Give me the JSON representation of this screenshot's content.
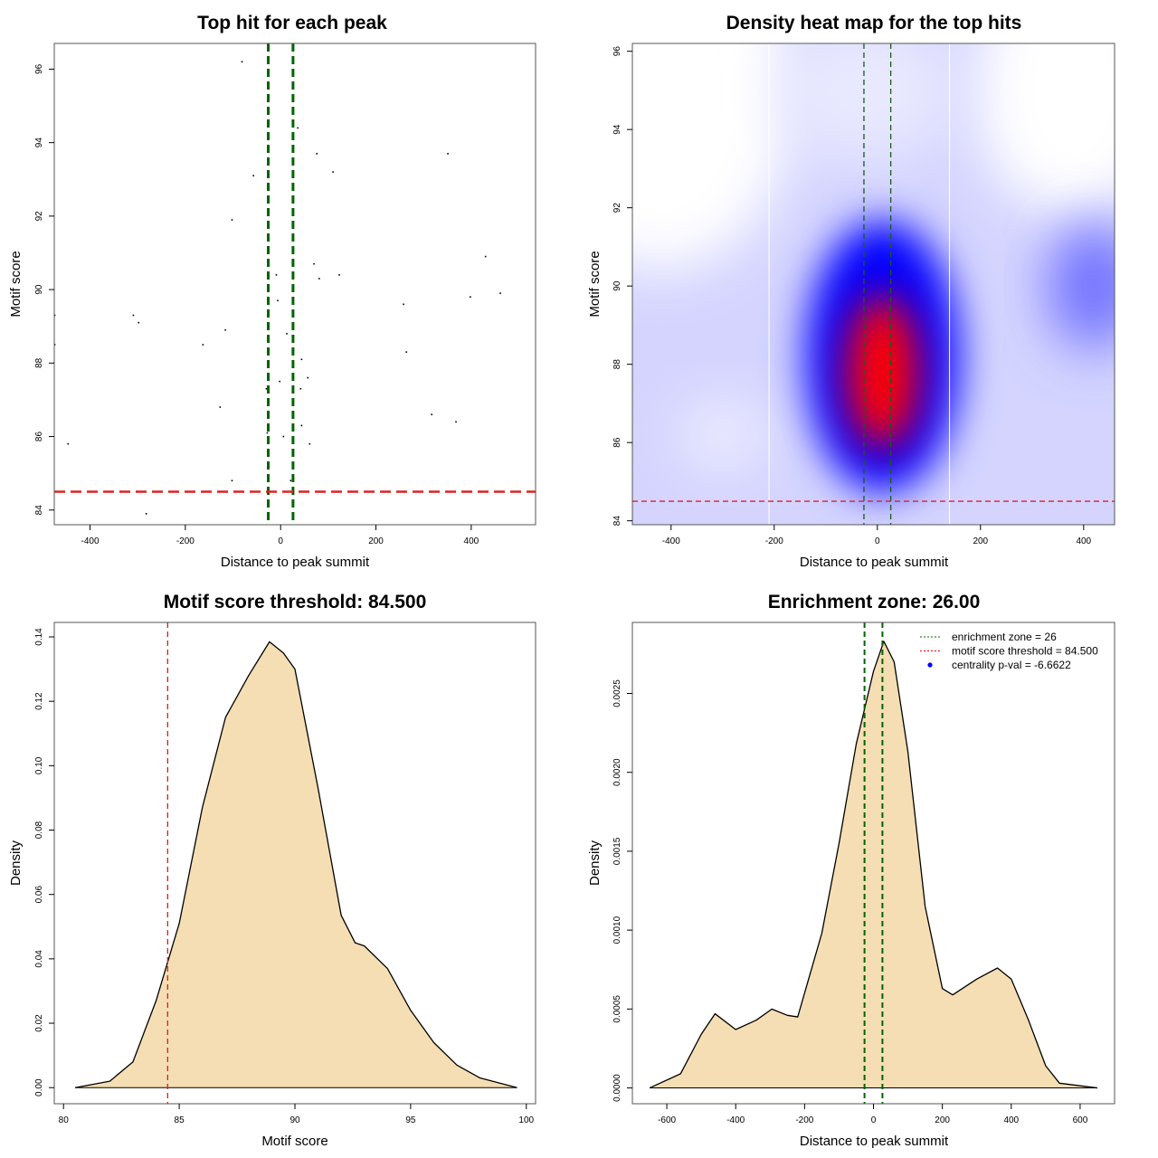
{
  "chart_data": [
    {
      "type": "scatter",
      "title": "Top hit for each peak",
      "xlabel": "Distance to peak summit",
      "ylabel": "Motif score",
      "xlim": [
        -475,
        535
      ],
      "ylim": [
        83.6,
        96.7
      ],
      "xticks": [
        -400,
        -200,
        0,
        200,
        400
      ],
      "yticks": [
        84,
        86,
        88,
        90,
        92,
        94,
        96
      ],
      "vlines": [
        -26,
        26
      ],
      "vline_color": "#006400",
      "hline": 84.5,
      "hline_color": "#dd2222",
      "points": [
        [
          -81,
          96.2
        ],
        [
          36,
          94.4
        ],
        [
          76,
          93.7
        ],
        [
          351,
          93.7
        ],
        [
          110,
          93.2
        ],
        [
          -57,
          93.1
        ],
        [
          -102,
          91.9
        ],
        [
          430,
          90.9
        ],
        [
          70,
          90.7
        ],
        [
          -9,
          90.4
        ],
        [
          123,
          90.4
        ],
        [
          81,
          90.3
        ],
        [
          27,
          90.1
        ],
        [
          461,
          89.9
        ],
        [
          398,
          89.8
        ],
        [
          258,
          89.6
        ],
        [
          -474,
          89.3
        ],
        [
          -309,
          89.3
        ],
        [
          -298,
          89.1
        ],
        [
          -6,
          89.7
        ],
        [
          -116,
          88.9
        ],
        [
          13,
          88.8
        ],
        [
          -474,
          88.5
        ],
        [
          -163,
          88.5
        ],
        [
          264,
          88.3
        ],
        [
          44,
          88.1
        ],
        [
          57,
          87.6
        ],
        [
          -2,
          87.5
        ],
        [
          42,
          87.3
        ],
        [
          -30,
          87.3
        ],
        [
          -127,
          86.8
        ],
        [
          317,
          86.6
        ],
        [
          368,
          86.4
        ],
        [
          44,
          86.3
        ],
        [
          -28,
          86.1
        ],
        [
          6,
          86.0
        ],
        [
          61,
          85.8
        ],
        [
          -446,
          85.8
        ],
        [
          -102,
          84.8
        ],
        [
          21,
          84.8
        ],
        [
          -282,
          83.9
        ]
      ]
    },
    {
      "type": "heatmap",
      "title": "Density heat map for the top hits",
      "xlabel": "Distance to peak summit",
      "ylabel": "Motif score",
      "xlim": [
        -475,
        460
      ],
      "ylim": [
        83.9,
        96.2
      ],
      "xticks": [
        -400,
        -200,
        0,
        200,
        400
      ],
      "yticks": [
        84,
        86,
        88,
        90,
        92,
        94,
        96
      ],
      "vlines": [
        -26,
        26
      ],
      "hline": 84.5,
      "white_lines": [
        -210,
        140
      ],
      "peak": [
        10,
        87.8
      ],
      "colors": {
        "low": "#ffffff",
        "mid": "#0000ff",
        "high": "#ff0000"
      }
    },
    {
      "type": "area",
      "title": "Motif score threshold: 84.500",
      "xlabel": "Motif score",
      "ylabel": "Density",
      "xlim": [
        79.6,
        100.4
      ],
      "ylim": [
        -0.005,
        0.1445
      ],
      "xticks": [
        80,
        85,
        90,
        95,
        100
      ],
      "yticks": [
        "0.00",
        "0.02",
        "0.04",
        "0.06",
        "0.08",
        "0.10",
        "0.12",
        "0.14"
      ],
      "vline": 84.5,
      "vline_color": "#cc2222",
      "fill": "#f5deb3",
      "x": [
        80.5,
        82,
        83,
        84,
        85,
        86,
        87,
        88,
        88.9,
        89.5,
        90,
        91,
        92,
        92.6,
        93,
        94,
        95,
        96,
        97,
        98,
        99.6
      ],
      "y": [
        0,
        0.002,
        0.008,
        0.027,
        0.051,
        0.087,
        0.115,
        0.128,
        0.1385,
        0.135,
        0.13,
        0.093,
        0.0535,
        0.045,
        0.044,
        0.037,
        0.024,
        0.014,
        0.007,
        0.003,
        0
      ]
    },
    {
      "type": "area",
      "title": "Enrichment zone: 26.00",
      "xlabel": "Distance to peak summit",
      "ylabel": "Density",
      "xlim": [
        -700,
        700
      ],
      "ylim": [
        -0.0001,
        0.00295
      ],
      "xticks": [
        -600,
        -400,
        -200,
        0,
        200,
        400,
        600
      ],
      "yticks": [
        "0.0000",
        "0.0005",
        "0.0010",
        "0.0015",
        "0.0020",
        "0.0025"
      ],
      "vlines": [
        -26,
        26
      ],
      "vline_color": "#006400",
      "fill": "#f5deb3",
      "x": [
        -650,
        -560,
        -500,
        -460,
        -400,
        -340,
        -295,
        -250,
        -220,
        -150,
        -100,
        -50,
        0,
        30,
        60,
        100,
        150,
        200,
        230,
        300,
        360,
        400,
        450,
        500,
        540,
        650
      ],
      "y": [
        0,
        9e-05,
        0.00034,
        0.00047,
        0.00037,
        0.00043,
        0.0005,
        0.00046,
        0.00045,
        0.00098,
        0.00155,
        0.00218,
        0.00264,
        0.00283,
        0.0027,
        0.00213,
        0.00115,
        0.00063,
        0.00059,
        0.00069,
        0.00076,
        0.00069,
        0.00043,
        0.00014,
        3e-05,
        0
      ],
      "legend": {
        "position": "top-right",
        "entries": [
          {
            "label": "enrichment zone = 26",
            "color": "#006400",
            "style": "dotted"
          },
          {
            "label": "motif score threshold = 84.500",
            "color": "#ff0000",
            "style": "dotted"
          },
          {
            "label": "centrality p-val = -6.6622",
            "color": "#0000ff",
            "style": "point"
          }
        ]
      }
    }
  ]
}
